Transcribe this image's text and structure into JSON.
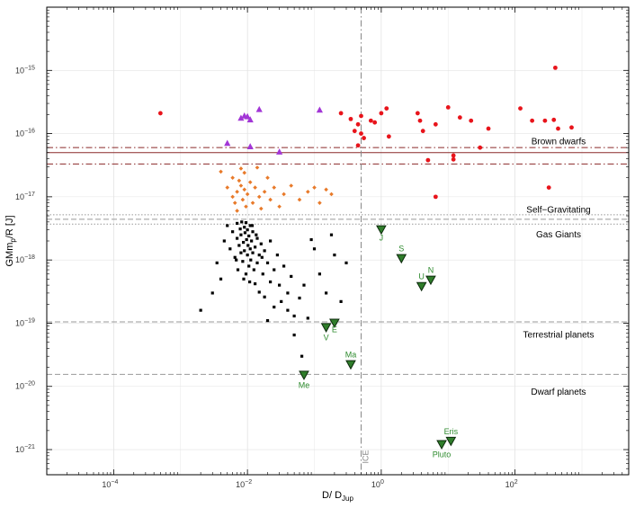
{
  "chart_data": {
    "type": "scatter",
    "xlabel": "D/ D",
    "xlabel_sub": "Jup",
    "ylabel": "GMm",
    "ylabel_sub": "p",
    "ylabel_suffix": "/R  [J]",
    "x_log": true,
    "y_log": true,
    "xlim": [
      1e-05,
      5000
    ],
    "ylim": [
      4e-22,
      1e-14
    ],
    "grid": true,
    "x_ticks": [
      {
        "value": 0.0001,
        "base": "10",
        "exp": "−4"
      },
      {
        "value": 0.01,
        "base": "10",
        "exp": "−2"
      },
      {
        "value": 1,
        "base": "10",
        "exp": "0"
      },
      {
        "value": 100,
        "base": "10",
        "exp": "2"
      }
    ],
    "y_ticks": [
      {
        "value": 1e-21,
        "base": "10",
        "exp": "−21"
      },
      {
        "value": 1e-20,
        "base": "10",
        "exp": "−20"
      },
      {
        "value": 1e-19,
        "base": "10",
        "exp": "−19"
      },
      {
        "value": 1e-18,
        "base": "10",
        "exp": "−18"
      },
      {
        "value": 1e-17,
        "base": "10",
        "exp": "−17"
      },
      {
        "value": 1e-16,
        "base": "10",
        "exp": "−16"
      },
      {
        "value": 1e-15,
        "base": "10",
        "exp": "−15"
      }
    ],
    "horizontal_lines": [
      {
        "y": 5e-17,
        "style": "solid",
        "color": "#8b2a2a"
      },
      {
        "y": 6e-17,
        "style": "dashdot",
        "color": "#8b2a2a"
      },
      {
        "y": 3.3e-17,
        "style": "dashdot",
        "color": "#8b2a2a"
      },
      {
        "y": 4.4e-18,
        "style": "dashed",
        "color": "#999999"
      },
      {
        "y": 5.2e-18,
        "style": "dotted",
        "color": "#999999"
      },
      {
        "y": 3.7e-18,
        "style": "dotted",
        "color": "#999999"
      },
      {
        "y": 1.05e-19,
        "style": "dashed",
        "color": "#999999"
      },
      {
        "y": 1.55e-20,
        "style": "dashed",
        "color": "#999999"
      }
    ],
    "vertical_lines": [
      {
        "x": 0.5,
        "style": "dashdot",
        "color": "#888888",
        "label": "ICE"
      }
    ],
    "region_labels": [
      {
        "text": "Brown dwarfs",
        "y": 7.5e-17
      },
      {
        "text": "Self−Gravitating",
        "y": 6.2e-18
      },
      {
        "text": "Gas Giants",
        "y": 2.5e-18
      },
      {
        "text": "Terrestrial planets",
        "y": 6.5e-20
      },
      {
        "text": "Dwarf planets",
        "y": 8.2e-21
      }
    ],
    "series": [
      {
        "marker": "circle",
        "color": "#e8141b",
        "points": [
          [
            0.0005,
            2.1e-16
          ],
          [
            0.25,
            2.1e-16
          ],
          [
            0.35,
            1.7e-16
          ],
          [
            0.45,
            1.4e-16
          ],
          [
            0.5,
            1.9e-16
          ],
          [
            0.55,
            8.5e-17
          ],
          [
            0.45,
            6.5e-17
          ],
          [
            0.4,
            1.1e-16
          ],
          [
            0.5,
            1e-16
          ],
          [
            0.7,
            1.6e-16
          ],
          [
            0.8,
            1.5e-16
          ],
          [
            1.0,
            2.1e-16
          ],
          [
            1.2,
            2.5e-16
          ],
          [
            1.3,
            9e-17
          ],
          [
            3.5,
            2.1e-16
          ],
          [
            3.8,
            1.6e-16
          ],
          [
            4.2,
            1.1e-16
          ],
          [
            6.5,
            1.4e-16
          ],
          [
            10,
            2.6e-16
          ],
          [
            15,
            1.8e-16
          ],
          [
            22,
            1.6e-16
          ],
          [
            30,
            6e-17
          ],
          [
            40,
            1.2e-16
          ],
          [
            120,
            2.5e-16
          ],
          [
            180,
            1.6e-16
          ],
          [
            280,
            1.6e-16
          ],
          [
            380,
            1.65e-16
          ],
          [
            440,
            1.2e-16
          ],
          [
            700,
            1.25e-16
          ],
          [
            400,
            1.1e-15
          ],
          [
            5,
            3.8e-17
          ],
          [
            12,
            4.5e-17
          ],
          [
            12,
            3.9e-17
          ],
          [
            6.5,
            1e-17
          ],
          [
            320,
            1.4e-17
          ]
        ]
      },
      {
        "marker": "triangle-up",
        "color": "#a236d6",
        "points": [
          [
            0.005,
            7e-17
          ],
          [
            0.008,
            1.75e-16
          ],
          [
            0.009,
            1.9e-16
          ],
          [
            0.01,
            1.85e-16
          ],
          [
            0.011,
            1.65e-16
          ],
          [
            0.015,
            2.4e-16
          ],
          [
            0.011,
            6.2e-17
          ],
          [
            0.03,
            5.1e-17
          ],
          [
            0.12,
            2.35e-16
          ]
        ]
      },
      {
        "marker": "diamond",
        "color": "#e87a2a",
        "points": [
          [
            0.004,
            2.5e-17
          ],
          [
            0.005,
            1.4e-17
          ],
          [
            0.006,
            2e-17
          ],
          [
            0.006,
            1e-17
          ],
          [
            0.0065,
            8e-18
          ],
          [
            0.007,
            1.2e-17
          ],
          [
            0.007,
            6e-18
          ],
          [
            0.0075,
            1.8e-17
          ],
          [
            0.008,
            2.8e-17
          ],
          [
            0.008,
            1.5e-17
          ],
          [
            0.0085,
            9e-18
          ],
          [
            0.009,
            2.4e-17
          ],
          [
            0.009,
            1.3e-17
          ],
          [
            0.0095,
            7e-18
          ],
          [
            0.01,
            1.1e-17
          ],
          [
            0.011,
            1.7e-17
          ],
          [
            0.012,
            8e-18
          ],
          [
            0.013,
            1.4e-17
          ],
          [
            0.014,
            2.9e-17
          ],
          [
            0.015,
            1e-17
          ],
          [
            0.016,
            6.5e-18
          ],
          [
            0.018,
            1.2e-17
          ],
          [
            0.02,
            2e-17
          ],
          [
            0.022,
            9e-18
          ],
          [
            0.025,
            1.4e-17
          ],
          [
            0.03,
            7e-18
          ],
          [
            0.035,
            1.1e-17
          ],
          [
            0.045,
            1.5e-17
          ],
          [
            0.06,
            9e-18
          ],
          [
            0.08,
            1.2e-17
          ],
          [
            0.1,
            1.4e-17
          ],
          [
            0.12,
            8e-18
          ],
          [
            0.15,
            1.3e-17
          ],
          [
            0.18,
            1.1e-17
          ]
        ]
      },
      {
        "marker": "square",
        "color": "#000000",
        "points": [
          [
            0.002,
            1.6e-19
          ],
          [
            0.003,
            3e-19
          ],
          [
            0.004,
            5e-19
          ],
          [
            0.0035,
            9e-19
          ],
          [
            0.0045,
            2e-18
          ],
          [
            0.005,
            3.5e-18
          ],
          [
            0.0055,
            1.5e-18
          ],
          [
            0.006,
            2.8e-18
          ],
          [
            0.0065,
            1.1e-18
          ],
          [
            0.007,
            3.8e-18
          ],
          [
            0.007,
            2.2e-18
          ],
          [
            0.0072,
            7e-19
          ],
          [
            0.0075,
            1.7e-18
          ],
          [
            0.0078,
            3.1e-18
          ],
          [
            0.008,
            1.3e-18
          ],
          [
            0.008,
            2.5e-18
          ],
          [
            0.0082,
            4e-18
          ],
          [
            0.0085,
            9.5e-19
          ],
          [
            0.0087,
            1.9e-18
          ],
          [
            0.009,
            3.3e-18
          ],
          [
            0.009,
            1.4e-18
          ],
          [
            0.0092,
            2.7e-18
          ],
          [
            0.0095,
            6e-19
          ],
          [
            0.0095,
            3.9e-18
          ],
          [
            0.0097,
            2.1e-18
          ],
          [
            0.01,
            1.2e-18
          ],
          [
            0.01,
            3e-18
          ],
          [
            0.0102,
            1.7e-18
          ],
          [
            0.0105,
            8e-19
          ],
          [
            0.0105,
            2.4e-18
          ],
          [
            0.011,
            1.5e-18
          ],
          [
            0.011,
            3.5e-18
          ],
          [
            0.0112,
            1e-18
          ],
          [
            0.0115,
            2e-18
          ],
          [
            0.012,
            1.3e-18
          ],
          [
            0.012,
            2.8e-18
          ],
          [
            0.0125,
            7e-19
          ],
          [
            0.013,
            1.6e-18
          ],
          [
            0.013,
            4.2e-19
          ],
          [
            0.014,
            2.2e-18
          ],
          [
            0.014,
            9e-19
          ],
          [
            0.015,
            1.2e-18
          ],
          [
            0.015,
            3.1e-19
          ],
          [
            0.016,
            1.8e-18
          ],
          [
            0.017,
            6e-19
          ],
          [
            0.018,
            1.4e-18
          ],
          [
            0.018,
            2.6e-19
          ],
          [
            0.02,
            9e-19
          ],
          [
            0.02,
            1.1e-19
          ],
          [
            0.022,
            2e-18
          ],
          [
            0.022,
            4.5e-19
          ],
          [
            0.025,
            7e-19
          ],
          [
            0.025,
            1.8e-19
          ],
          [
            0.028,
            1.2e-18
          ],
          [
            0.03,
            4e-19
          ],
          [
            0.032,
            2.2e-19
          ],
          [
            0.035,
            8e-19
          ],
          [
            0.04,
            3e-19
          ],
          [
            0.04,
            1.6e-19
          ],
          [
            0.045,
            5.5e-19
          ],
          [
            0.05,
            1.3e-19
          ],
          [
            0.05,
            6.5e-20
          ],
          [
            0.06,
            2.5e-19
          ],
          [
            0.065,
            3e-20
          ],
          [
            0.07,
            4e-19
          ],
          [
            0.08,
            1.2e-19
          ],
          [
            0.09,
            2.1e-18
          ],
          [
            0.1,
            1.5e-18
          ],
          [
            0.12,
            6e-19
          ],
          [
            0.15,
            3e-19
          ],
          [
            0.18,
            2.5e-18
          ],
          [
            0.2,
            1.2e-18
          ],
          [
            0.25,
            2.2e-19
          ],
          [
            0.3,
            9e-19
          ],
          [
            0.0068,
            1e-18
          ],
          [
            0.0088,
            5e-19
          ],
          [
            0.0108,
            4.5e-19
          ],
          [
            0.0118,
            3.5e-18
          ],
          [
            0.0135,
            2.5e-18
          ],
          [
            0.0165,
            1.1e-18
          ]
        ]
      },
      {
        "marker": "triangle-down",
        "color": "#2f7d2a",
        "points": [
          [
            0.07,
            1.5e-20
          ],
          [
            0.15,
            8.5e-20
          ],
          [
            0.2,
            1e-19
          ],
          [
            0.35,
            2.2e-20
          ],
          [
            1.0,
            3e-18
          ],
          [
            2.0,
            1.05e-18
          ],
          [
            4.0,
            3.8e-19
          ],
          [
            5.5,
            4.8e-19
          ],
          [
            8.0,
            1.2e-21
          ],
          [
            11.0,
            1.35e-21
          ]
        ],
        "labels": [
          "Me",
          "V",
          "E",
          "Ma",
          "J",
          "S",
          "U",
          "N",
          "Pluto",
          "Eris"
        ]
      }
    ]
  }
}
